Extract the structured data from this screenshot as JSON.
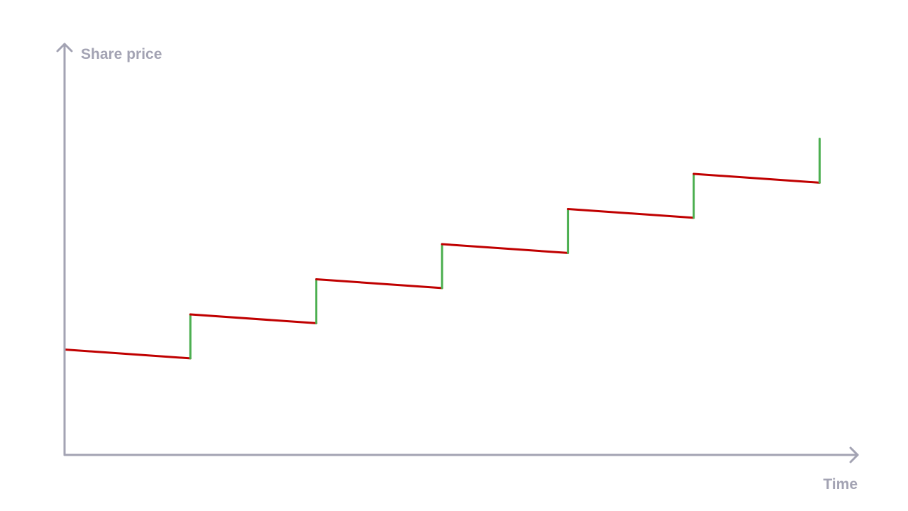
{
  "chart_data": {
    "type": "line",
    "title": "",
    "xlabel": "Time",
    "ylabel": "Share price",
    "grid": false,
    "legend": "none",
    "tick_labels": false,
    "colors": {
      "axis": "#a3a3b3",
      "decline": "#c00000",
      "rise": "#4caf50"
    },
    "series": [
      {
        "points": [
          [
            0.0,
            3.0
          ],
          [
            1.0,
            2.75
          ],
          [
            1.0,
            4.0
          ],
          [
            2.0,
            3.75
          ],
          [
            2.0,
            5.0
          ],
          [
            3.0,
            4.75
          ],
          [
            3.0,
            6.0
          ],
          [
            4.0,
            5.75
          ],
          [
            4.0,
            7.0
          ],
          [
            5.0,
            6.75
          ],
          [
            5.0,
            8.0
          ],
          [
            6.0,
            7.75
          ],
          [
            6.0,
            9.0
          ]
        ]
      }
    ],
    "xlim": [
      0,
      6.3
    ],
    "ylim": [
      0,
      11.5
    ]
  }
}
